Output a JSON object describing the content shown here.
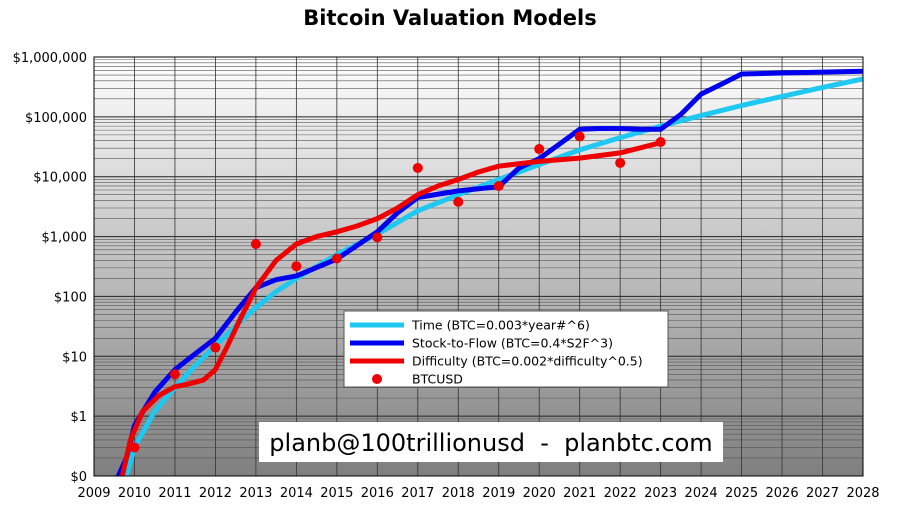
{
  "chart_data": {
    "type": "line",
    "title": "Bitcoin Valuation Models",
    "xlabel": "",
    "ylabel": "",
    "y_scale": "log",
    "xlim": [
      2009,
      2028
    ],
    "ylim_exponents": [
      -1,
      6
    ],
    "x_ticks": [
      "2009",
      "2010",
      "2011",
      "2012",
      "2013",
      "2014",
      "2015",
      "2016",
      "2017",
      "2018",
      "2019",
      "2020",
      "2021",
      "2022",
      "2023",
      "2024",
      "2025",
      "2026",
      "2027",
      "2028"
    ],
    "y_ticks": [
      "$0",
      "$1",
      "$10",
      "$100",
      "$1,000",
      "$10,000",
      "$100,000",
      "$1,000,000"
    ],
    "grid": true,
    "legend_position": "center-right",
    "background": "gradient-light-to-dark-gray",
    "series": [
      {
        "name": "Time (BTC=0.003*year#^6)",
        "color": "#1ec8f0",
        "kind": "line",
        "x": [
          2009.8,
          2010.0,
          2010.5,
          2011.0,
          2011.5,
          2012.0,
          2012.5,
          2013.0,
          2013.5,
          2014.0,
          2015.0,
          2016.0,
          2017.0,
          2018.0,
          2019.0,
          2020.0,
          2021.0,
          2022.0,
          2023.0,
          2024.0,
          2025.0,
          2026.0,
          2027.0,
          2028.0
        ],
        "y": [
          0.1,
          0.3,
          1.2,
          3,
          7,
          15,
          32,
          65,
          120,
          200,
          500,
          1100,
          2700,
          5000,
          9000,
          16000,
          28000,
          45000,
          70000,
          105000,
          155000,
          220000,
          310000,
          430000
        ]
      },
      {
        "name": "Stock-to-Flow (BTC=0.4*S2F^3)",
        "color": "#0000ee",
        "kind": "line",
        "x": [
          2009.6,
          2009.8,
          2010.0,
          2010.5,
          2011.0,
          2011.5,
          2012.0,
          2012.5,
          2013.0,
          2013.5,
          2014.0,
          2015.0,
          2016.0,
          2016.5,
          2017.0,
          2018.0,
          2019.0,
          2019.5,
          2020.0,
          2020.5,
          2021.0,
          2021.5,
          2022.0,
          2022.5,
          2023.0,
          2023.5,
          2024.0,
          2024.5,
          2025.0,
          2026.0,
          2027.0,
          2028.0
        ],
        "y": [
          0.1,
          0.2,
          0.7,
          2.5,
          6,
          11,
          20,
          55,
          140,
          190,
          220,
          420,
          1200,
          2500,
          4500,
          5800,
          6800,
          14000,
          20000,
          35000,
          62000,
          64000,
          64000,
          62000,
          62000,
          110000,
          240000,
          350000,
          520000,
          540000,
          560000,
          580000
        ]
      },
      {
        "name": "Difficulty (BTC=0.002*difficulty^0.5)",
        "color": "#ee0000",
        "kind": "line",
        "x": [
          2009.7,
          2009.9,
          2010.2,
          2010.6,
          2011.0,
          2011.3,
          2011.7,
          2012.0,
          2012.3,
          2012.6,
          2013.0,
          2013.5,
          2014.0,
          2014.5,
          2015.0,
          2015.5,
          2016.0,
          2016.5,
          2017.0,
          2017.5,
          2018.0,
          2018.5,
          2019.0,
          2019.5,
          2020.0,
          2021.0,
          2022.0,
          2023.0
        ],
        "y": [
          0.1,
          0.4,
          1.2,
          2.2,
          3.1,
          3.4,
          4,
          6,
          15,
          40,
          140,
          400,
          750,
          1000,
          1200,
          1500,
          2000,
          3000,
          5000,
          7000,
          9000,
          12000,
          15000,
          16500,
          18000,
          20500,
          25000,
          37000
        ]
      },
      {
        "name": "BTCUSD",
        "color": "#ee0000",
        "kind": "points",
        "x": [
          2010.0,
          2011.0,
          2012.0,
          2013.0,
          2014.0,
          2015.0,
          2016.0,
          2017.0,
          2018.0,
          2019.0,
          2020.0,
          2021.0,
          2022.0,
          2023.0
        ],
        "y": [
          0.3,
          5,
          14,
          750,
          320,
          430,
          970,
          14000,
          3800,
          7000,
          29000,
          47000,
          17000,
          38000
        ]
      }
    ]
  },
  "watermark": "planb@100trillionusd  -  planbtc.com"
}
